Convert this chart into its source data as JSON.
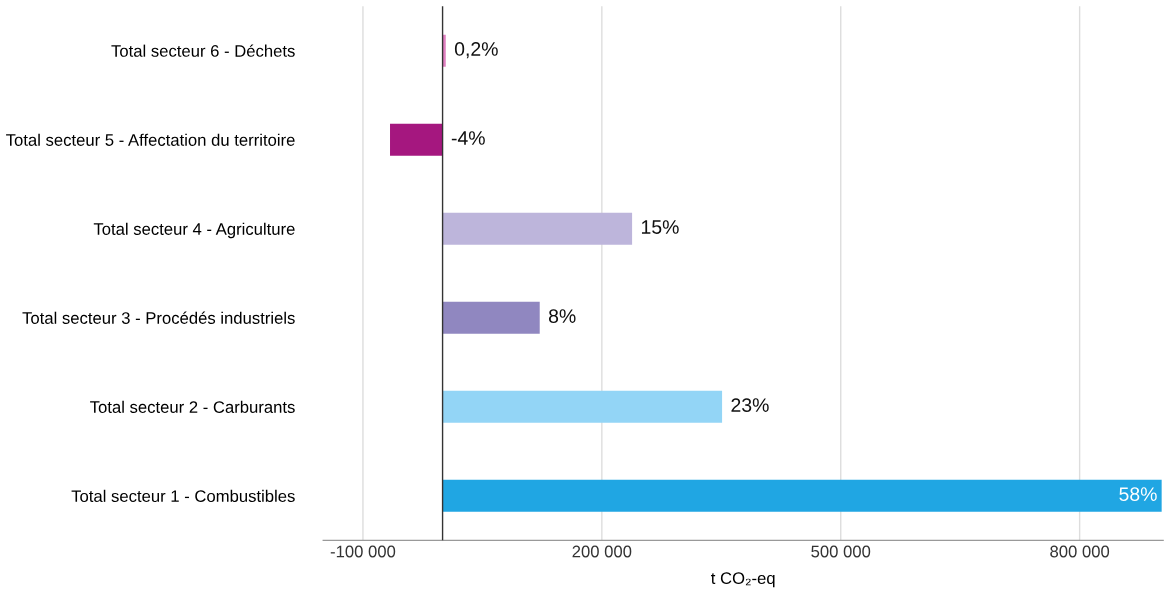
{
  "chart_data": {
    "type": "bar",
    "orientation": "horizontal",
    "categories": [
      "Total secteur 6 - Déchets",
      "Total secteur 5 - Affectation du territoire",
      "Total secteur 4 - Agriculture",
      "Total secteur 3 - Procédés industriels",
      "Total secteur 2 - Carburants",
      "Total secteur 1 - Combustibles"
    ],
    "values": [
      4000,
      -66000,
      238000,
      122000,
      351000,
      903000
    ],
    "colors": [
      "#e07fc0",
      "#a5177f",
      "#bdb5db",
      "#9087c0",
      "#93d5f6",
      "#20a6e3"
    ],
    "annotations": [
      {
        "text": "0,2%",
        "x": 4000,
        "y": "Total secteur 6 - Déchets"
      },
      {
        "text": "-4%",
        "x": 0,
        "y": "Total secteur 5 - Affectation du territoire"
      },
      {
        "text": "15%",
        "x": 238000,
        "y": "Total secteur 4 - Agriculture"
      },
      {
        "text": "8%",
        "x": 122000,
        "y": "Total secteur 3 - Procédés industriels"
      },
      {
        "text": "23%",
        "x": 351000,
        "y": "Total secteur 2 - Carburants"
      },
      {
        "text": "58%",
        "x": 903000,
        "y": "Total secteur 1 - Combustibles"
      }
    ],
    "xlabel": "t CO₂-eq",
    "xlim": [
      -150000,
      905000
    ],
    "xticks": [
      {
        "value": -100000,
        "label": "-100 000"
      },
      {
        "value": 200000,
        "label": "200 000"
      },
      {
        "value": 500000,
        "label": "500 000"
      },
      {
        "value": 800000,
        "label": "800 000"
      }
    ],
    "grid": "x"
  }
}
